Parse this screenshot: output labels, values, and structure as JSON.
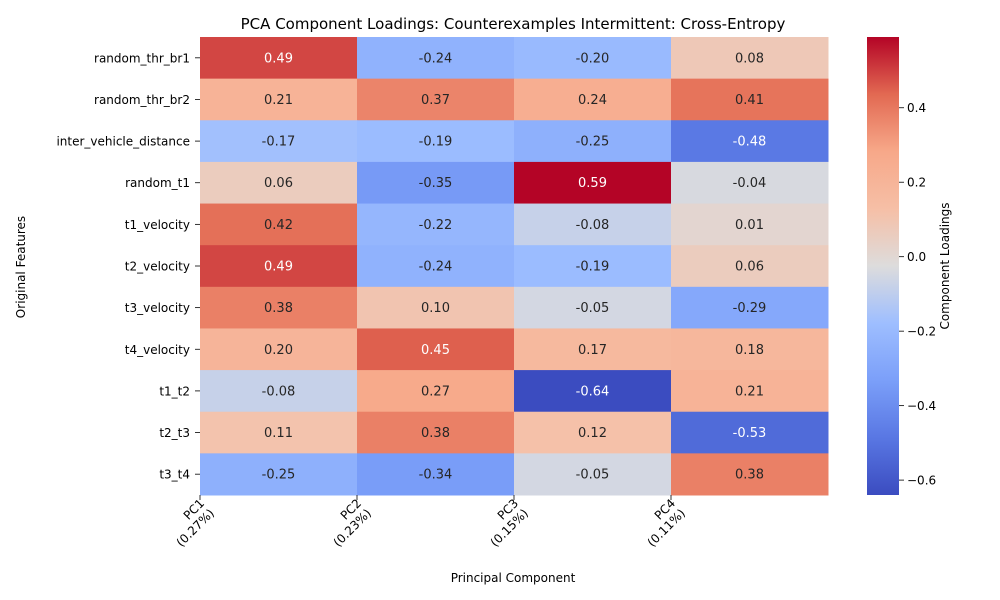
{
  "chart_data": {
    "type": "heatmap",
    "title": "PCA Component Loadings: Counterexamples Intermittent: Cross-Entropy",
    "xlabel": "Principal Component",
    "ylabel": "Original Features",
    "colorbar_label": "Component Loadings",
    "colormap": "coolwarm",
    "vmin": -0.64,
    "vmax": 0.59,
    "colorbar_ticks": [
      0.4,
      0.2,
      0.0,
      -0.2,
      -0.4,
      -0.6
    ],
    "colorbar_tick_labels": [
      "0.4",
      "0.2",
      "0.0",
      "−0.2",
      "−0.4",
      "−0.6"
    ],
    "rows": [
      "random_thr_br1",
      "random_thr_br2",
      "inter_vehicle_distance",
      "random_t1",
      "t1_velocity",
      "t2_velocity",
      "t3_velocity",
      "t4_velocity",
      "t1_t2",
      "t2_t3",
      "t3_t4"
    ],
    "columns": 4,
    "x_ticks": [
      {
        "name": "PC1",
        "variance": "(0.27%)"
      },
      {
        "name": "PC2",
        "variance": "(0.23%)"
      },
      {
        "name": "PC3",
        "variance": "(0.15%)"
      },
      {
        "name": "PC4",
        "variance": "(0.11%)"
      }
    ],
    "values": [
      [
        0.49,
        -0.24,
        -0.2,
        0.08
      ],
      [
        0.21,
        0.37,
        0.24,
        0.41
      ],
      [
        -0.17,
        -0.19,
        -0.25,
        -0.48
      ],
      [
        0.06,
        -0.35,
        0.59,
        -0.04
      ],
      [
        0.42,
        -0.22,
        -0.08,
        0.01
      ],
      [
        0.49,
        -0.24,
        -0.19,
        0.06
      ],
      [
        0.38,
        0.1,
        -0.05,
        -0.29
      ],
      [
        0.2,
        0.45,
        0.17,
        0.18
      ],
      [
        -0.08,
        0.27,
        -0.64,
        0.21
      ],
      [
        0.11,
        0.38,
        0.12,
        -0.53
      ],
      [
        -0.25,
        -0.34,
        -0.05,
        0.38
      ]
    ],
    "annotations": [
      [
        "0.49",
        "-0.24",
        "-0.20",
        "0.08"
      ],
      [
        "0.21",
        "0.37",
        "0.24",
        "0.41"
      ],
      [
        "-0.17",
        "-0.19",
        "-0.25",
        "-0.48"
      ],
      [
        "0.06",
        "-0.35",
        "0.59",
        "-0.04"
      ],
      [
        "0.42",
        "-0.22",
        "-0.08",
        "0.01"
      ],
      [
        "0.49",
        "-0.24",
        "-0.19",
        "0.06"
      ],
      [
        "0.38",
        "0.10",
        "-0.05",
        "-0.29"
      ],
      [
        "0.20",
        "0.45",
        "0.17",
        "0.18"
      ],
      [
        "-0.08",
        "0.27",
        "-0.64",
        "0.21"
      ],
      [
        "0.11",
        "0.38",
        "0.12",
        "-0.53"
      ],
      [
        "-0.25",
        "-0.34",
        "-0.05",
        "0.38"
      ]
    ]
  }
}
